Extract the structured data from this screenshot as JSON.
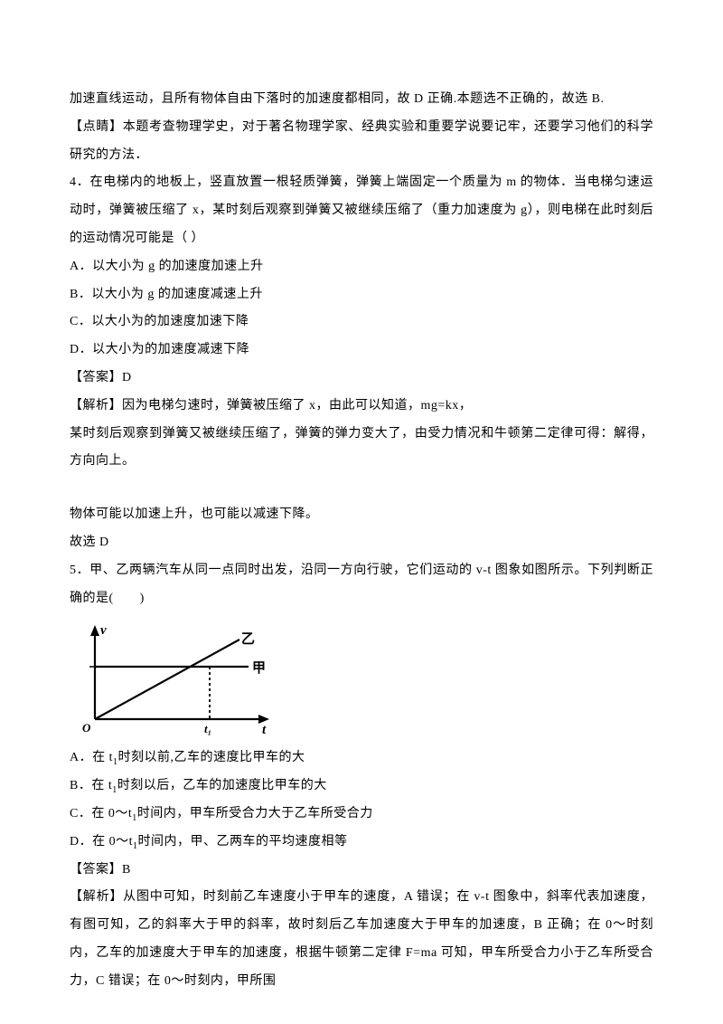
{
  "p1": "加速直线运动，且所有物体自由下落时的加速度都相同，故 D 正确.本题选不正确的，故选 B.",
  "p2": "【点睛】本题考查物理学史，对于著名物理学家、经典实验和重要学说要记牢，还要学习他们的科学研究的方法．",
  "p3": "4．在电梯内的地板上，竖直放置一根轻质弹簧，弹簧上端固定一个质量为 m 的物体．当电梯匀速运动时，弹簧被压缩了 x，某时刻后观察到弹簧又被继续压缩了（重力加速度为 g），则电梯在此时刻后的运动情况可能是（   ）",
  "p4": "A．以大小为 g 的加速度加速上升",
  "p5": "B．以大小为 g 的加速度减速上升",
  "p6": "C．以大小为的加速度加速下降",
  "p7": "D．以大小为的加速度减速下降",
  "p8": "【答案】D",
  "p9": "【解析】因为电梯匀速时，弹簧被压缩了 x，由此可以知道，mg=kx，",
  "p10": "某时刻后观察到弹簧又被继续压缩了，弹簧的弹力变大了，由受力情况和牛顿第二定律可得：解得，方向向上。",
  "p11": "物体可能以加速上升，也可能以减速下降。",
  "p12": "故选 D",
  "p13_pre": "5．甲、乙两辆汽车从同一点同时出发，沿同一方向行驶，它们运动的 v-t 图象如图所示。下列判断正确的是(　　)",
  "p14_pre": "A．在 t",
  "p14_sub": "1",
  "p14_post": "时刻以前,乙车的速度比甲车的大",
  "p15_pre": "B．在 t",
  "p15_sub": "1",
  "p15_post": "时刻以后，乙车的加速度比甲车的大",
  "p16_pre": "C．在 0～t",
  "p16_sub": "1",
  "p16_post": "时间内，甲车所受合力大于乙车所受合力",
  "p17_pre": "D．在 0～t",
  "p17_sub": "1",
  "p17_post": "时间内，甲、乙两车的平均速度相等",
  "p18": "【答案】B",
  "p19": "【解析】从图中可知，时刻前乙车速度小于甲车的速度，A 错误；在 v-t 图象中，斜率代表加速度，有图可知，乙的斜率大于甲的斜率，故时刻后乙车加速度大于甲车的加速度，B 正确；在 0～时刻内，乙车的加速度大于甲车的加速度，根据牛顿第二定律 F=ma 可知，甲车所受合力小于乙车所受合力，C 错误；在 0～时刻内，甲所围",
  "figure": {
    "axis_color": "#000000",
    "line_width": 2.2,
    "origin_label": "O",
    "x_label": "t",
    "y_label": "v",
    "x_tick_label": "t₁",
    "line1_label": "甲",
    "line2_label": "乙",
    "label_fontsize": 15,
    "tick_fontsize": 13,
    "font_weight": "bold"
  }
}
